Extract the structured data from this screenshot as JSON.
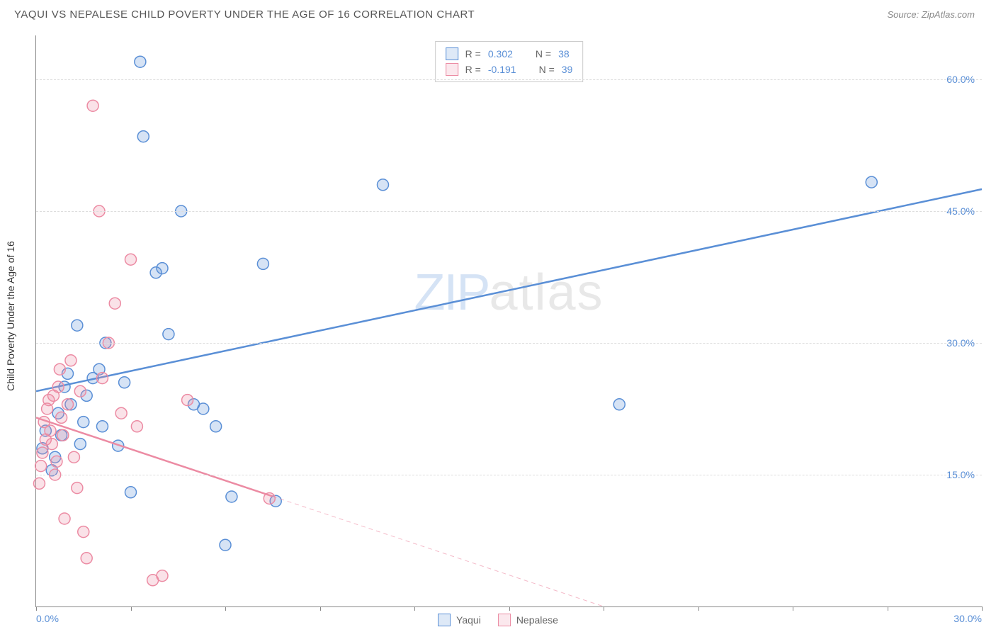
{
  "header": {
    "title": "YAQUI VS NEPALESE CHILD POVERTY UNDER THE AGE OF 16 CORRELATION CHART",
    "source_prefix": "Source: ",
    "source_name": "ZipAtlas.com"
  },
  "ylabel": "Child Poverty Under the Age of 16",
  "watermark": {
    "part1": "ZIP",
    "part2": "atlas"
  },
  "chart": {
    "type": "scatter",
    "background_color": "#ffffff",
    "grid_color": "#dddddd",
    "axis_color": "#888888",
    "tick_label_color": "#5a8fd6",
    "xlim": [
      0,
      30
    ],
    "ylim": [
      0,
      65
    ],
    "xticks": [
      0,
      3,
      6,
      9,
      12,
      15,
      18,
      21,
      24,
      27,
      30
    ],
    "xtick_labels_shown": {
      "0": "0.0%",
      "30": "30.0%"
    },
    "yticks": [
      15,
      30,
      45,
      60
    ],
    "ytick_labels": [
      "15.0%",
      "30.0%",
      "45.0%",
      "60.0%"
    ],
    "marker_radius": 8,
    "marker_fill_opacity": 0.25,
    "marker_stroke_width": 1.5,
    "series": [
      {
        "name": "Yaqui",
        "color": "#5a8fd6",
        "R": "0.302",
        "N": "38",
        "regression": {
          "x1": 0,
          "y1": 24.5,
          "x2": 30,
          "y2": 47.5,
          "dashed_from_x": null
        },
        "line_width": 2.5,
        "points": [
          [
            0.2,
            18
          ],
          [
            0.3,
            20
          ],
          [
            0.5,
            15.5
          ],
          [
            0.6,
            17
          ],
          [
            0.7,
            22
          ],
          [
            0.8,
            19.5
          ],
          [
            0.9,
            25
          ],
          [
            1.0,
            26.5
          ],
          [
            1.1,
            23
          ],
          [
            1.3,
            32
          ],
          [
            1.4,
            18.5
          ],
          [
            1.5,
            21
          ],
          [
            1.6,
            24
          ],
          [
            1.8,
            26
          ],
          [
            2.0,
            27
          ],
          [
            2.1,
            20.5
          ],
          [
            2.2,
            30
          ],
          [
            2.6,
            18.3
          ],
          [
            2.8,
            25.5
          ],
          [
            3.0,
            13
          ],
          [
            3.3,
            62
          ],
          [
            3.4,
            53.5
          ],
          [
            3.8,
            38
          ],
          [
            4.0,
            38.5
          ],
          [
            4.2,
            31
          ],
          [
            4.6,
            45
          ],
          [
            5.0,
            23
          ],
          [
            5.3,
            22.5
          ],
          [
            5.7,
            20.5
          ],
          [
            6.0,
            7
          ],
          [
            6.2,
            12.5
          ],
          [
            7.2,
            39
          ],
          [
            7.6,
            12
          ],
          [
            11.0,
            48
          ],
          [
            18.5,
            23
          ],
          [
            26.5,
            48.3
          ]
        ]
      },
      {
        "name": "Nepalese",
        "color": "#ec8ba3",
        "R": "-0.191",
        "N": "39",
        "regression": {
          "x1": 0,
          "y1": 21.5,
          "x2": 18,
          "y2": 0,
          "dashed_from_x": 7.5
        },
        "line_width": 2.5,
        "points": [
          [
            0.1,
            14
          ],
          [
            0.15,
            16
          ],
          [
            0.2,
            17.5
          ],
          [
            0.25,
            21
          ],
          [
            0.3,
            19
          ],
          [
            0.35,
            22.5
          ],
          [
            0.4,
            23.5
          ],
          [
            0.45,
            20
          ],
          [
            0.5,
            18.5
          ],
          [
            0.55,
            24
          ],
          [
            0.6,
            15
          ],
          [
            0.65,
            16.5
          ],
          [
            0.7,
            25
          ],
          [
            0.75,
            27
          ],
          [
            0.8,
            21.5
          ],
          [
            0.85,
            19.5
          ],
          [
            0.9,
            10
          ],
          [
            1.0,
            23
          ],
          [
            1.1,
            28
          ],
          [
            1.2,
            17
          ],
          [
            1.3,
            13.5
          ],
          [
            1.4,
            24.5
          ],
          [
            1.5,
            8.5
          ],
          [
            1.6,
            5.5
          ],
          [
            1.8,
            57
          ],
          [
            2.0,
            45
          ],
          [
            2.1,
            26
          ],
          [
            2.3,
            30
          ],
          [
            2.5,
            34.5
          ],
          [
            2.7,
            22
          ],
          [
            3.0,
            39.5
          ],
          [
            3.2,
            20.5
          ],
          [
            3.7,
            3
          ],
          [
            4.0,
            3.5
          ],
          [
            4.8,
            23.5
          ],
          [
            7.4,
            12.3
          ]
        ]
      }
    ]
  },
  "stats_legend": {
    "R_label": "R =",
    "N_label": "N ="
  }
}
